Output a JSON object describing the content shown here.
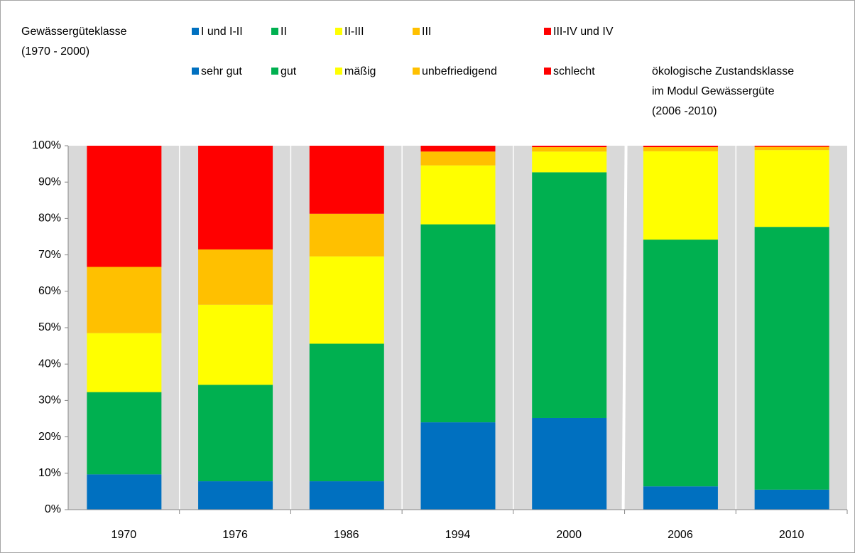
{
  "chart_data": {
    "type": "stacked_bar",
    "legend_title": [
      "Gewässergüteklasse",
      "(1970 - 2000)"
    ],
    "legend_title_2": [
      "ökologische Zustandsklasse",
      "im Modul Gewässergüte",
      "(2006 -2010)"
    ],
    "legend_names_2": [
      "sehr gut",
      "gut",
      "mäßig",
      "unbefriedigend",
      "schlecht"
    ],
    "categories": [
      "1970",
      "1976",
      "1986",
      "1994",
      "2000",
      "2006",
      "2010"
    ],
    "series": [
      {
        "name": "I und I-II",
        "color": "#0070c0",
        "values": [
          9.7,
          7.8,
          7.8,
          24,
          25.2,
          6.4,
          5.5
        ]
      },
      {
        "name": "II",
        "color": "#00b050",
        "values": [
          22.6,
          26.5,
          37.8,
          54.4,
          67.5,
          67.8,
          72.2
        ]
      },
      {
        "name": "II-III",
        "color": "#ffff00",
        "values": [
          16.2,
          22,
          24,
          16.2,
          5.7,
          24.3,
          21.1
        ]
      },
      {
        "name": "III",
        "color": "#ffc000",
        "values": [
          18.2,
          15.2,
          11.7,
          3.8,
          1.2,
          1.1,
          0.9
        ]
      },
      {
        "name": "III-IV und IV",
        "color": "#ff0000",
        "values": [
          33.3,
          28.5,
          18.7,
          1.6,
          0.4,
          0.4,
          0.3
        ]
      }
    ],
    "ylim": [
      0,
      100
    ],
    "yticks": [
      {
        "value": 0,
        "label": "0%"
      },
      {
        "value": 10,
        "label": "10%"
      },
      {
        "value": 20,
        "label": "20%"
      },
      {
        "value": 30,
        "label": "30%"
      },
      {
        "value": 40,
        "label": "40%"
      },
      {
        "value": 50,
        "label": "50%"
      },
      {
        "value": 60,
        "label": "60%"
      },
      {
        "value": 70,
        "label": "70%"
      },
      {
        "value": 80,
        "label": "80%"
      },
      {
        "value": 90,
        "label": "90%"
      },
      {
        "value": 100,
        "label": "100%"
      }
    ]
  }
}
